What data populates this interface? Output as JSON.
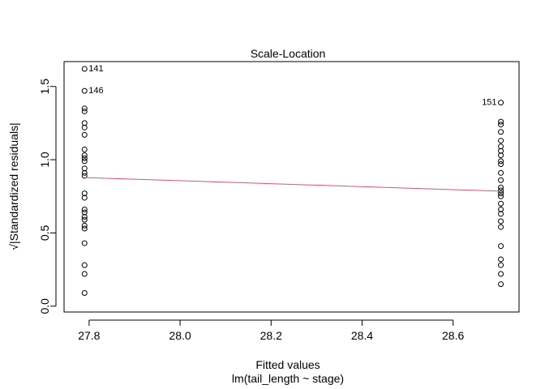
{
  "chart_data": {
    "type": "scatter",
    "title": "Scale-Location",
    "xlabel": "Fitted values",
    "sublabel": "lm(tail_length ~ stage)",
    "ylabel_prefix": "√",
    "ylabel": "|Standardized residuals|",
    "xlim": [
      27.745,
      28.745
    ],
    "ylim": [
      -0.04,
      1.67
    ],
    "xticks": [
      27.8,
      28.0,
      28.2,
      28.4,
      28.6
    ],
    "xtick_labels": [
      "27.8",
      "28.0",
      "28.2",
      "28.4",
      "28.6"
    ],
    "yticks": [
      0.0,
      0.5,
      1.0,
      1.5
    ],
    "ytick_labels": [
      "0.0",
      "0.5",
      "1.0",
      "1.5"
    ],
    "grid": false,
    "colors": {
      "points": "#000000",
      "smoother": "#DF536B",
      "box": "#000000"
    },
    "series": [
      {
        "x_value": 27.79,
        "y": [
          1.62,
          1.47,
          1.35,
          1.33,
          1.25,
          1.22,
          1.17,
          1.07,
          1.03,
          1.01,
          0.99,
          0.94,
          0.91,
          0.89,
          0.77,
          0.74,
          0.66,
          0.64,
          0.61,
          0.59,
          0.55,
          0.53,
          0.43,
          0.28,
          0.22,
          0.09
        ]
      },
      {
        "x_value": 28.705,
        "y": [
          1.39,
          1.26,
          1.24,
          1.19,
          1.13,
          1.09,
          1.06,
          1.03,
          0.99,
          0.97,
          0.91,
          0.86,
          0.81,
          0.79,
          0.77,
          0.75,
          0.7,
          0.66,
          0.63,
          0.58,
          0.54,
          0.41,
          0.32,
          0.28,
          0.22,
          0.15
        ]
      }
    ],
    "smoother": {
      "x": [
        27.79,
        28.705
      ],
      "y": [
        0.878,
        0.785
      ]
    },
    "annotations": [
      {
        "label": "141",
        "x": 27.79,
        "y": 1.62,
        "side": "right"
      },
      {
        "label": "146",
        "x": 27.79,
        "y": 1.47,
        "side": "right"
      },
      {
        "label": "151",
        "x": 28.705,
        "y": 1.39,
        "side": "left"
      }
    ]
  }
}
